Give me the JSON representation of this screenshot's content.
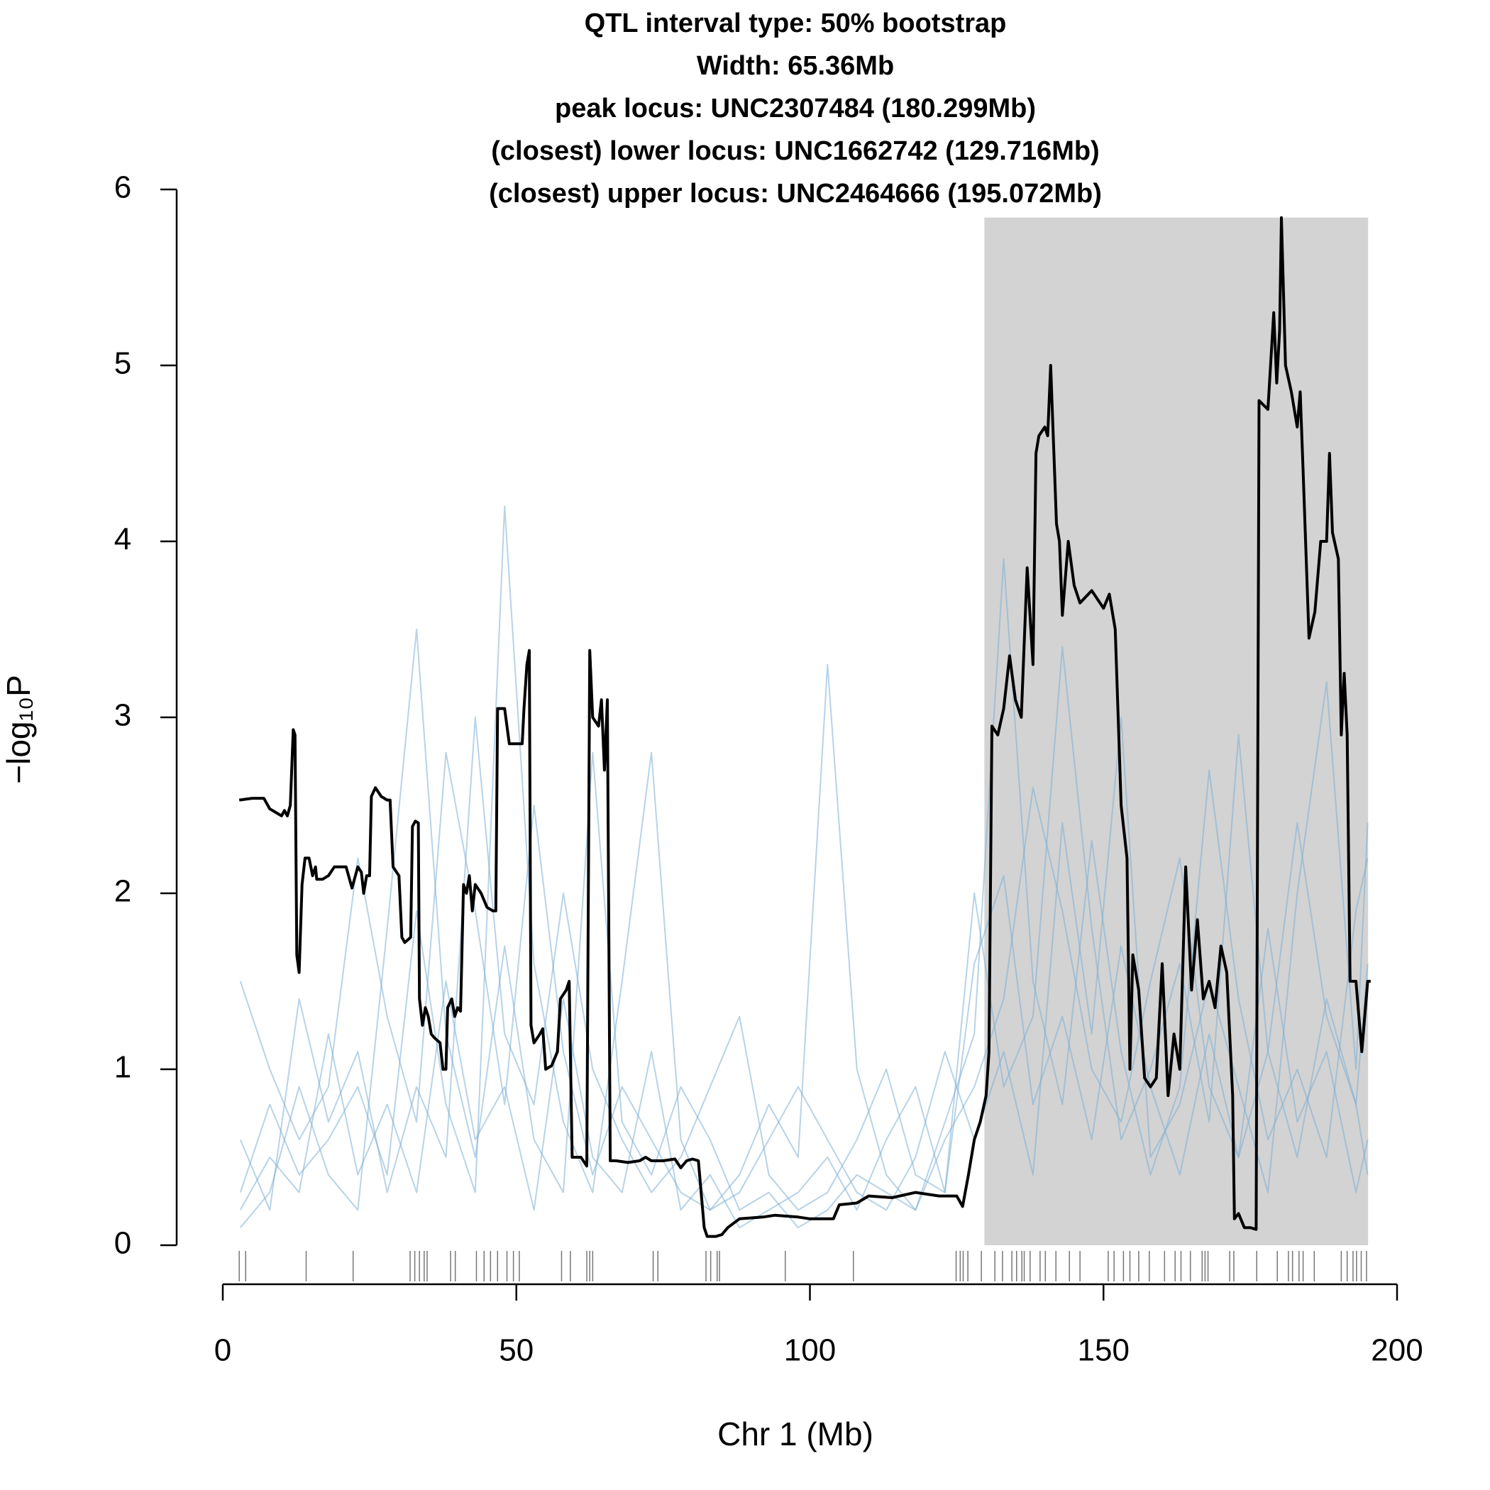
{
  "chart_data": {
    "type": "line",
    "title": [
      "QTL interval type: 50% bootstrap",
      "Width: 65.36Mb",
      "peak locus: UNC2307484 (180.299Mb)",
      "(closest) lower locus: UNC1662742 (129.716Mb)",
      "(closest) upper locus: UNC2464666 (195.072Mb)"
    ],
    "xlabel": "Chr 1 (Mb)",
    "ylabel": "−log₁₀P",
    "xlim": [
      0,
      200
    ],
    "ylim": [
      0,
      6
    ],
    "xticks": [
      0,
      50,
      100,
      150,
      200
    ],
    "yticks": [
      0,
      1,
      2,
      3,
      4,
      5,
      6
    ],
    "interval": [
      129.716,
      195.072
    ],
    "interval_color": "#d3d3d3",
    "markers": [
      2.8,
      3.9,
      14.2,
      22.2,
      31.9,
      32.7,
      33.5,
      34.3,
      34.8,
      38.8,
      39.6,
      43.2,
      44.5,
      45.6,
      46.8,
      48.4,
      49.5,
      50.5,
      57.7,
      59.2,
      62.0,
      62.5,
      63.0,
      73.3,
      74.1,
      82.3,
      83.1,
      84.2,
      84.6,
      95.8,
      107.4,
      124.9,
      125.6,
      126.1,
      126.9,
      129.2,
      131.5,
      132.8,
      134.4,
      135.2,
      136.1,
      136.5,
      137.5,
      139.2,
      140.1,
      141.9,
      144.2,
      146.0,
      150.8,
      151.8,
      153.4,
      154.5,
      156.0,
      157.8,
      160.4,
      162.2,
      163.2,
      164.8,
      166.8,
      167.3,
      167.8,
      171.5,
      172.2,
      176.1,
      179.6,
      181.5,
      182.2,
      183.3,
      184.0,
      185.9,
      190.5,
      191.5,
      192.5,
      193.1,
      193.9,
      194.8
    ],
    "series": [
      {
        "color": "#7bafd4",
        "x": [
          3,
          8,
          13,
          18,
          23,
          28,
          33,
          38,
          43,
          48,
          53,
          58,
          63,
          68,
          73,
          78,
          83,
          88,
          93,
          98,
          103,
          108,
          113,
          118,
          123,
          128,
          133,
          138,
          143,
          148,
          153,
          158,
          163,
          168,
          173,
          178,
          183,
          188,
          193,
          195
        ],
        "values": [
          0.2,
          0.5,
          0.3,
          1.2,
          0.4,
          0.8,
          0.3,
          1.5,
          0.6,
          0.9,
          0.2,
          1.4,
          0.5,
          0.3,
          1.1,
          0.2,
          0.4,
          0.1,
          0.2,
          0.3,
          0.5,
          0.2,
          0.6,
          0.9,
          0.3,
          1.6,
          2.1,
          0.8,
          1.3,
          0.6,
          1.7,
          0.9,
          0.4,
          1.2,
          0.5,
          1.8,
          0.7,
          1.1,
          0.3,
          0.6
        ]
      },
      {
        "color": "#7bafd4",
        "x": [
          3,
          8,
          13,
          18,
          23,
          28,
          33,
          38,
          43,
          48,
          53,
          58,
          63,
          68,
          73,
          78,
          83,
          88,
          93,
          98,
          103,
          108,
          113,
          118,
          123,
          128,
          133,
          138,
          143,
          148,
          153,
          158,
          163,
          168,
          173,
          178,
          183,
          188,
          193,
          195
        ],
        "values": [
          1.5,
          1.0,
          0.6,
          0.9,
          2.2,
          1.3,
          0.7,
          2.8,
          1.9,
          0.8,
          2.5,
          1.1,
          0.4,
          0.9,
          0.6,
          0.3,
          0.2,
          0.4,
          0.8,
          0.5,
          3.3,
          1.0,
          0.4,
          0.2,
          0.6,
          0.9,
          1.4,
          2.6,
          1.9,
          1.0,
          0.7,
          1.5,
          2.2,
          0.9,
          0.5,
          1.1,
          2.4,
          1.3,
          0.8,
          1.6
        ]
      },
      {
        "color": "#7bafd4",
        "x": [
          3,
          8,
          13,
          18,
          23,
          28,
          33,
          38,
          43,
          48,
          53,
          58,
          63,
          68,
          73,
          78,
          83,
          88,
          93,
          98,
          103,
          108,
          113,
          118,
          123,
          128,
          133,
          138,
          143,
          148,
          153,
          158,
          163,
          168,
          173,
          178,
          183,
          188,
          193,
          195
        ],
        "values": [
          0.1,
          0.3,
          0.9,
          0.4,
          0.2,
          1.8,
          3.5,
          1.2,
          0.5,
          1.7,
          0.6,
          0.3,
          2.8,
          0.7,
          0.4,
          0.9,
          0.6,
          0.2,
          0.3,
          0.1,
          0.2,
          0.4,
          0.3,
          0.2,
          0.7,
          1.2,
          3.9,
          1.5,
          0.8,
          2.3,
          1.1,
          0.4,
          0.9,
          2.7,
          1.4,
          0.6,
          1.0,
          0.5,
          1.9,
          2.2
        ]
      },
      {
        "color": "#7bafd4",
        "x": [
          3,
          8,
          13,
          18,
          23,
          28,
          33,
          38,
          43,
          48,
          53,
          58,
          63,
          68,
          73,
          78,
          83,
          88,
          93,
          98,
          103,
          108,
          113,
          118,
          123,
          128,
          133,
          138,
          143,
          148,
          153,
          158,
          163,
          168,
          173,
          178,
          183,
          188,
          193,
          195
        ],
        "values": [
          0.6,
          0.2,
          1.4,
          0.7,
          1.1,
          0.3,
          0.9,
          0.5,
          3.0,
          1.2,
          0.8,
          2.0,
          1.0,
          0.6,
          0.3,
          0.5,
          0.9,
          1.3,
          0.4,
          0.2,
          0.3,
          0.6,
          1.0,
          0.4,
          0.3,
          2.0,
          0.9,
          1.3,
          3.4,
          1.8,
          0.6,
          1.0,
          1.6,
          0.7,
          2.9,
          1.1,
          0.5,
          1.4,
          0.8,
          0.4
        ]
      },
      {
        "color": "#7bafd4",
        "x": [
          3,
          8,
          13,
          18,
          23,
          28,
          33,
          38,
          43,
          48,
          53,
          58,
          63,
          68,
          73,
          78,
          83,
          88,
          93,
          98,
          103,
          108,
          113,
          118,
          123,
          128,
          133,
          138,
          143,
          148,
          153,
          158,
          163,
          168,
          173,
          178,
          183,
          188,
          193,
          195
        ],
        "values": [
          0.3,
          0.8,
          0.4,
          0.6,
          0.9,
          0.4,
          1.9,
          0.8,
          0.3,
          4.2,
          1.6,
          0.7,
          0.3,
          1.5,
          2.8,
          0.6,
          0.2,
          0.3,
          0.6,
          0.9,
          0.6,
          0.3,
          0.2,
          0.5,
          1.1,
          0.6,
          1.1,
          0.4,
          2.4,
          1.2,
          3.0,
          0.5,
          0.8,
          1.5,
          0.9,
          0.3,
          2.0,
          3.2,
          1.0,
          2.4
        ]
      },
      {
        "color": "#000000",
        "x": [
          2.8,
          5,
          7,
          8,
          9,
          10,
          10.5,
          11,
          11.5,
          12,
          12.3,
          12.6,
          13,
          13.5,
          14,
          14.7,
          15.3,
          15.8,
          16,
          17,
          18,
          19,
          21,
          22,
          23,
          23.6,
          24,
          24.5,
          25,
          25.3,
          26,
          27,
          28,
          28.5,
          29,
          30,
          30.5,
          31,
          32,
          32.3,
          32.8,
          33.3,
          33.5,
          34,
          34.5,
          35,
          35.5,
          36,
          37,
          37.5,
          38,
          38.3,
          39,
          39.5,
          40,
          40.5,
          41,
          41.5,
          42,
          42.5,
          43,
          44,
          45,
          46,
          46.5,
          46.8,
          48,
          48.8,
          50,
          51,
          51.3,
          51.8,
          52.2,
          52.5,
          53,
          54,
          54.5,
          55,
          56,
          57,
          57.5,
          58.5,
          59,
          59.5,
          61,
          62,
          62.5,
          63,
          64,
          64.5,
          65,
          65.5,
          66,
          67,
          69,
          71,
          72,
          73,
          75,
          77,
          78,
          79,
          80,
          81,
          82,
          82.5,
          84,
          85,
          86,
          88,
          92,
          94,
          98,
          100,
          104,
          105,
          108,
          110,
          114,
          118,
          122,
          125,
          126,
          127,
          128,
          129,
          130,
          130.5,
          131,
          132,
          133,
          134,
          135,
          136,
          137,
          138,
          138.5,
          139,
          140,
          140.5,
          141,
          142,
          142.5,
          143,
          144,
          145,
          146,
          148,
          150,
          151,
          152,
          153,
          154,
          154.5,
          155,
          156,
          157,
          158,
          159,
          160,
          161,
          162,
          163,
          164,
          165,
          166,
          167,
          168,
          169,
          170,
          171,
          172,
          172.3,
          173,
          174,
          175,
          176,
          176.5,
          178,
          179,
          179.5,
          180,
          180.3,
          181,
          182,
          183,
          183.5,
          184,
          185,
          186,
          187,
          188,
          188.5,
          189,
          190,
          190.5,
          191,
          191.5,
          192,
          193,
          194,
          195,
          195.5
        ],
        "values": [
          2.53,
          2.54,
          2.54,
          2.48,
          2.46,
          2.44,
          2.47,
          2.44,
          2.5,
          2.93,
          2.9,
          1.65,
          1.55,
          2.05,
          2.2,
          2.2,
          2.1,
          2.15,
          2.08,
          2.08,
          2.1,
          2.15,
          2.15,
          2.03,
          2.15,
          2.12,
          2.0,
          2.1,
          2.1,
          2.55,
          2.6,
          2.55,
          2.53,
          2.53,
          2.15,
          2.1,
          1.75,
          1.72,
          1.75,
          2.38,
          2.41,
          2.4,
          1.4,
          1.25,
          1.35,
          1.3,
          1.2,
          1.18,
          1.15,
          1.0,
          1.0,
          1.35,
          1.4,
          1.3,
          1.35,
          1.33,
          2.05,
          2.0,
          2.1,
          1.9,
          2.05,
          2.0,
          1.92,
          1.9,
          1.9,
          3.05,
          3.05,
          2.85,
          2.85,
          2.85,
          3.05,
          3.3,
          3.38,
          1.25,
          1.15,
          1.2,
          1.23,
          1.0,
          1.02,
          1.1,
          1.4,
          1.45,
          1.5,
          0.5,
          0.5,
          0.45,
          3.38,
          3.0,
          2.95,
          3.1,
          2.7,
          3.1,
          0.48,
          0.48,
          0.47,
          0.48,
          0.5,
          0.48,
          0.48,
          0.49,
          0.44,
          0.48,
          0.49,
          0.48,
          0.1,
          0.05,
          0.05,
          0.06,
          0.1,
          0.15,
          0.16,
          0.17,
          0.16,
          0.15,
          0.15,
          0.23,
          0.24,
          0.28,
          0.27,
          0.3,
          0.28,
          0.28,
          0.22,
          0.4,
          0.6,
          0.7,
          0.85,
          1.1,
          2.95,
          2.9,
          3.05,
          3.35,
          3.1,
          3.0,
          3.85,
          3.3,
          4.5,
          4.6,
          4.65,
          4.6,
          5.0,
          4.1,
          4.0,
          3.58,
          4.0,
          3.75,
          3.65,
          3.72,
          3.62,
          3.7,
          3.5,
          2.5,
          2.2,
          1.0,
          1.65,
          1.45,
          0.95,
          0.9,
          0.95,
          1.6,
          0.85,
          1.2,
          1.0,
          2.15,
          1.45,
          1.85,
          1.4,
          1.5,
          1.35,
          1.7,
          1.55,
          0.85,
          0.15,
          0.18,
          0.1,
          0.1,
          0.09,
          4.8,
          4.75,
          5.3,
          4.9,
          5.2,
          5.84,
          5.0,
          4.85,
          4.65,
          4.85,
          4.4,
          3.45,
          3.6,
          4.0,
          4.0,
          4.5,
          4.05,
          3.9,
          2.9,
          3.25,
          2.9,
          1.5,
          1.5,
          1.1,
          1.5,
          1.5
        ]
      }
    ]
  }
}
